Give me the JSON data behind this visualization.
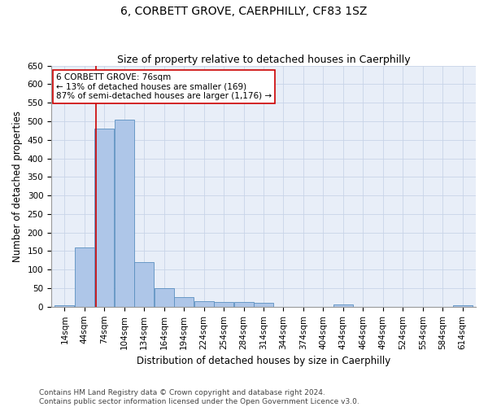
{
  "title": "6, CORBETT GROVE, CAERPHILLY, CF83 1SZ",
  "subtitle": "Size of property relative to detached houses in Caerphilly",
  "xlabel": "Distribution of detached houses by size in Caerphilly",
  "ylabel": "Number of detached properties",
  "bin_labels": [
    "14sqm",
    "44sqm",
    "74sqm",
    "104sqm",
    "134sqm",
    "164sqm",
    "194sqm",
    "224sqm",
    "254sqm",
    "284sqm",
    "314sqm",
    "344sqm",
    "374sqm",
    "404sqm",
    "434sqm",
    "464sqm",
    "494sqm",
    "524sqm",
    "554sqm",
    "584sqm",
    "614sqm"
  ],
  "bin_edges": [
    14,
    44,
    74,
    104,
    134,
    164,
    194,
    224,
    254,
    284,
    314,
    344,
    374,
    404,
    434,
    464,
    494,
    524,
    554,
    584,
    614
  ],
  "bar_heights": [
    5,
    160,
    480,
    505,
    120,
    50,
    25,
    15,
    13,
    13,
    10,
    0,
    0,
    0,
    7,
    0,
    0,
    0,
    0,
    0,
    5
  ],
  "bar_color": "#aec6e8",
  "bar_edge_color": "#5a8fc0",
  "property_size": 76,
  "vline_color": "#cc0000",
  "annotation_line1": "6 CORBETT GROVE: 76sqm",
  "annotation_line2": "← 13% of detached houses are smaller (169)",
  "annotation_line3": "87% of semi-detached houses are larger (1,176) →",
  "annotation_box_color": "#ffffff",
  "annotation_box_edge": "#cc0000",
  "ylim": [
    0,
    650
  ],
  "yticks": [
    0,
    50,
    100,
    150,
    200,
    250,
    300,
    350,
    400,
    450,
    500,
    550,
    600,
    650
  ],
  "grid_color": "#c8d4e8",
  "background_color": "#e8eef8",
  "footer_line1": "Contains HM Land Registry data © Crown copyright and database right 2024.",
  "footer_line2": "Contains public sector information licensed under the Open Government Licence v3.0.",
  "title_fontsize": 10,
  "subtitle_fontsize": 9,
  "axis_label_fontsize": 8.5,
  "tick_fontsize": 7.5,
  "annotation_fontsize": 7.5,
  "footer_fontsize": 6.5
}
